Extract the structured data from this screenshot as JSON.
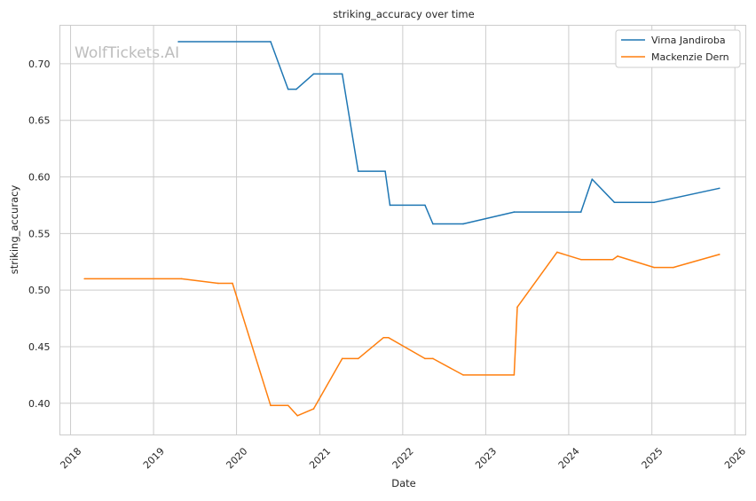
{
  "chart_data": {
    "type": "line",
    "title": "striking_accuracy over time",
    "xlabel": "Date",
    "ylabel": "striking_accuracy",
    "watermark": "WolfTickets.AI",
    "grid": true,
    "legend_position": "top-right",
    "xlim": [
      "2017-11-15",
      "2026-02-18"
    ],
    "ylim": [
      0.372,
      0.734
    ],
    "x_ticks": [
      "2018",
      "2019",
      "2020",
      "2021",
      "2022",
      "2023",
      "2024",
      "2025",
      "2026"
    ],
    "y_ticks": [
      "0.40",
      "0.45",
      "0.50",
      "0.55",
      "0.60",
      "0.65",
      "0.70"
    ],
    "series": [
      {
        "name": "Virna Jandiroba",
        "color": "#1f77b4",
        "points": [
          [
            "2019-04-20",
            0.7195
          ],
          [
            "2020-05-30",
            0.7195
          ],
          [
            "2020-08-15",
            0.6775
          ],
          [
            "2020-09-20",
            0.6775
          ],
          [
            "2020-12-05",
            0.691
          ],
          [
            "2021-04-10",
            0.691
          ],
          [
            "2021-06-19",
            0.605
          ],
          [
            "2021-10-16",
            0.605
          ],
          [
            "2021-11-06",
            0.575
          ],
          [
            "2022-04-09",
            0.575
          ],
          [
            "2022-05-14",
            0.5585
          ],
          [
            "2022-09-24",
            0.5585
          ],
          [
            "2023-05-06",
            0.569
          ],
          [
            "2024-02-24",
            0.569
          ],
          [
            "2024-04-13",
            0.598
          ],
          [
            "2024-07-20",
            0.5775
          ],
          [
            "2025-01-11",
            0.5775
          ],
          [
            "2025-10-25",
            0.59
          ]
        ]
      },
      {
        "name": "Mackenzie Dern",
        "color": "#ff7f0e",
        "points": [
          [
            "2018-03-03",
            0.51
          ],
          [
            "2019-05-04",
            0.51
          ],
          [
            "2019-10-12",
            0.506
          ],
          [
            "2019-12-14",
            0.506
          ],
          [
            "2020-05-30",
            0.398
          ],
          [
            "2020-08-15",
            0.398
          ],
          [
            "2020-09-25",
            0.389
          ],
          [
            "2020-12-05",
            0.395
          ],
          [
            "2021-04-10",
            0.4395
          ],
          [
            "2021-06-19",
            0.4395
          ],
          [
            "2021-10-09",
            0.458
          ],
          [
            "2021-10-30",
            0.458
          ],
          [
            "2022-04-09",
            0.4395
          ],
          [
            "2022-05-14",
            0.4395
          ],
          [
            "2022-09-24",
            0.425
          ],
          [
            "2023-05-06",
            0.425
          ],
          [
            "2023-05-20",
            0.485
          ],
          [
            "2023-11-11",
            0.5335
          ],
          [
            "2024-02-24",
            0.527
          ],
          [
            "2024-07-13",
            0.527
          ],
          [
            "2024-08-03",
            0.53
          ],
          [
            "2025-01-11",
            0.52
          ],
          [
            "2025-04-05",
            0.52
          ],
          [
            "2025-10-25",
            0.5315
          ]
        ]
      }
    ]
  }
}
